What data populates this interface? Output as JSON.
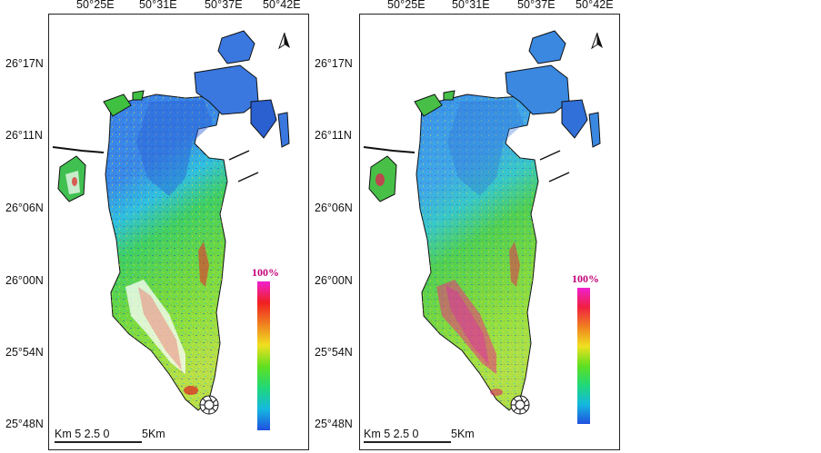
{
  "maps": [
    {
      "id": "left",
      "legend_title": "100%",
      "lon_ticks": [
        "50°25E",
        "50°31E",
        "50°37E",
        "50°42E"
      ],
      "lat_ticks": [
        "26°17N",
        "26°11N",
        "26°06N",
        "26°00N",
        "25°54N",
        "25°48N"
      ],
      "scale_text": "Km 5 2.5 0",
      "scale_end": "5Km",
      "gradient": [
        "#2050e0",
        "#14b8e0",
        "#20d878",
        "#60e020",
        "#f0e020",
        "#f08020",
        "#f02020",
        "#f020d0"
      ]
    },
    {
      "id": "right",
      "legend_title": "100%",
      "lon_ticks": [
        "50°25E",
        "50°31E",
        "50°37E",
        "50°42E"
      ],
      "lat_ticks": [
        "26°17N",
        "26°11N",
        "26°06N",
        "26°00N",
        "25°54N",
        "25°48N"
      ],
      "scale_text": "Km 5 2.5 0",
      "scale_end": "5Km",
      "gradient": [
        "#2050e0",
        "#14b8e0",
        "#20d878",
        "#60e020",
        "#f0e020",
        "#f08020",
        "#f02040",
        "#f020d0"
      ]
    }
  ],
  "colors": {
    "blue": "#3a7ae0",
    "cyan": "#30c0e8",
    "green": "#3ad050",
    "lime": "#90e030",
    "yellow": "#f0e030",
    "red": "#e82020",
    "magenta": "#e020c0"
  }
}
